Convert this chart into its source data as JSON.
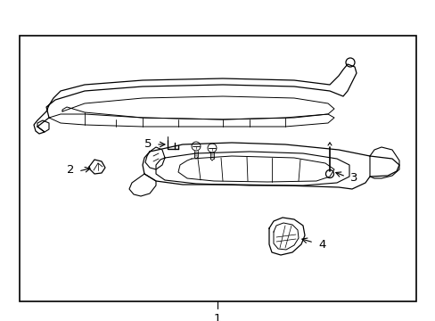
{
  "bg_color": "#ffffff",
  "border_color": "#000000",
  "line_color": "#000000",
  "text_color": "#000000",
  "label1": "1",
  "label2": "2",
  "label3": "3",
  "label4": "4",
  "label5": "5",
  "fig_width": 4.89,
  "fig_height": 3.6,
  "dpi": 100,
  "border": [
    22,
    22,
    445,
    298
  ]
}
